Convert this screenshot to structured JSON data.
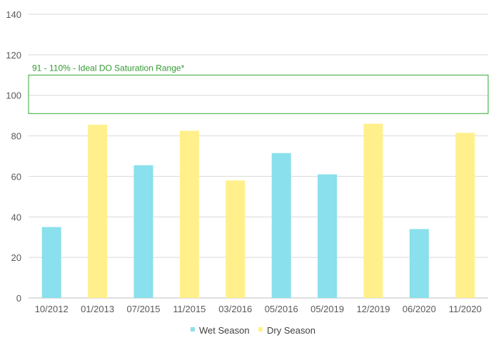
{
  "chart_data": {
    "type": "bar",
    "categories": [
      "10/2012",
      "01/2013",
      "07/2015",
      "11/2015",
      "03/2016",
      "05/2016",
      "05/2019",
      "12/2019",
      "06/2020",
      "11/2020"
    ],
    "values": [
      35,
      85.5,
      65.5,
      82.5,
      58,
      71.5,
      61,
      86,
      34,
      81.5
    ],
    "seasons": [
      "Wet Season",
      "Dry Season",
      "Wet Season",
      "Dry Season",
      "Dry Season",
      "Wet Season",
      "Wet Season",
      "Dry Season",
      "Wet Season",
      "Dry Season"
    ],
    "series": [
      {
        "name": "Wet Season",
        "color": "#8ae0ec"
      },
      {
        "name": "Dry Season",
        "color": "#fff08c"
      }
    ],
    "title": "",
    "xlabel": "",
    "ylabel": "",
    "ylim": [
      0,
      140
    ],
    "yticks": [
      0,
      20,
      40,
      60,
      80,
      100,
      120,
      140
    ],
    "grid": true,
    "legend_position": "bottom-center",
    "annotation": {
      "label": "91 - 110% - Ideal DO Saturation Range*",
      "range": [
        91,
        110
      ],
      "color": "#33aa33"
    }
  }
}
